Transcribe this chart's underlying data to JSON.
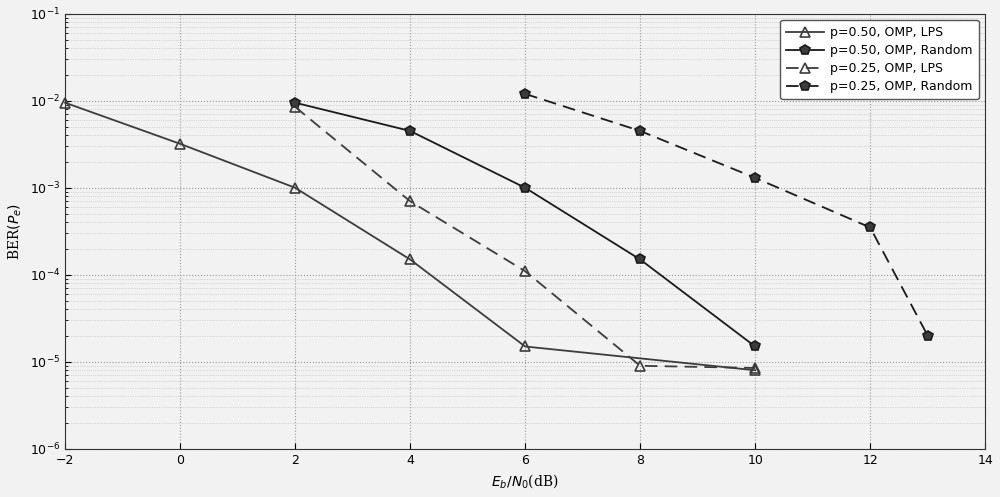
{
  "series": [
    {
      "label": "p=0.50, OMP, LPS",
      "x": [
        -2,
        0,
        2,
        4,
        6,
        10
      ],
      "y": [
        0.0095,
        0.0032,
        0.001,
        0.00015,
        1.5e-05,
        8e-06
      ],
      "linestyle": "solid",
      "marker": "^",
      "markersize": 7,
      "color": "#3c3c3c",
      "linewidth": 1.3,
      "markerfacecolor": "none",
      "dashes": null
    },
    {
      "label": "p=0.50, OMP, Random",
      "x": [
        2,
        4,
        6,
        8,
        10
      ],
      "y": [
        0.0095,
        0.0045,
        0.001,
        0.00015,
        1.5e-05
      ],
      "linestyle": "solid",
      "marker": "p",
      "markersize": 7,
      "color": "#1a1a1a",
      "linewidth": 1.3,
      "markerfacecolor": "#3c3c3c",
      "dashes": null
    },
    {
      "label": "p=0.25, OMP, LPS",
      "x": [
        2,
        4,
        6,
        8,
        10
      ],
      "y": [
        0.0085,
        0.0007,
        0.00011,
        9e-06,
        8.5e-06
      ],
      "linestyle": "dashed",
      "marker": "^",
      "markersize": 7,
      "color": "#3c3c3c",
      "linewidth": 1.3,
      "markerfacecolor": "none",
      "dashes": [
        7,
        4
      ]
    },
    {
      "label": "p=0.25, OMP, Random",
      "x": [
        6,
        8,
        10,
        12,
        13
      ],
      "y": [
        0.012,
        0.0045,
        0.0013,
        0.00035,
        2e-05
      ],
      "linestyle": "dashed",
      "marker": "p",
      "markersize": 7,
      "color": "#1a1a1a",
      "linewidth": 1.3,
      "markerfacecolor": "#3c3c3c",
      "dashes": [
        7,
        4
      ]
    }
  ],
  "xlim": [
    -2,
    14
  ],
  "ylim": [
    1e-06,
    0.1
  ],
  "xticks": [
    -2,
    0,
    2,
    4,
    6,
    8,
    10,
    12,
    14
  ],
  "xlabel": "E_b/N_0(dB)",
  "ylabel": "BER(P_e)",
  "background_color": "#f2f2f2",
  "legend_loc": "upper right"
}
